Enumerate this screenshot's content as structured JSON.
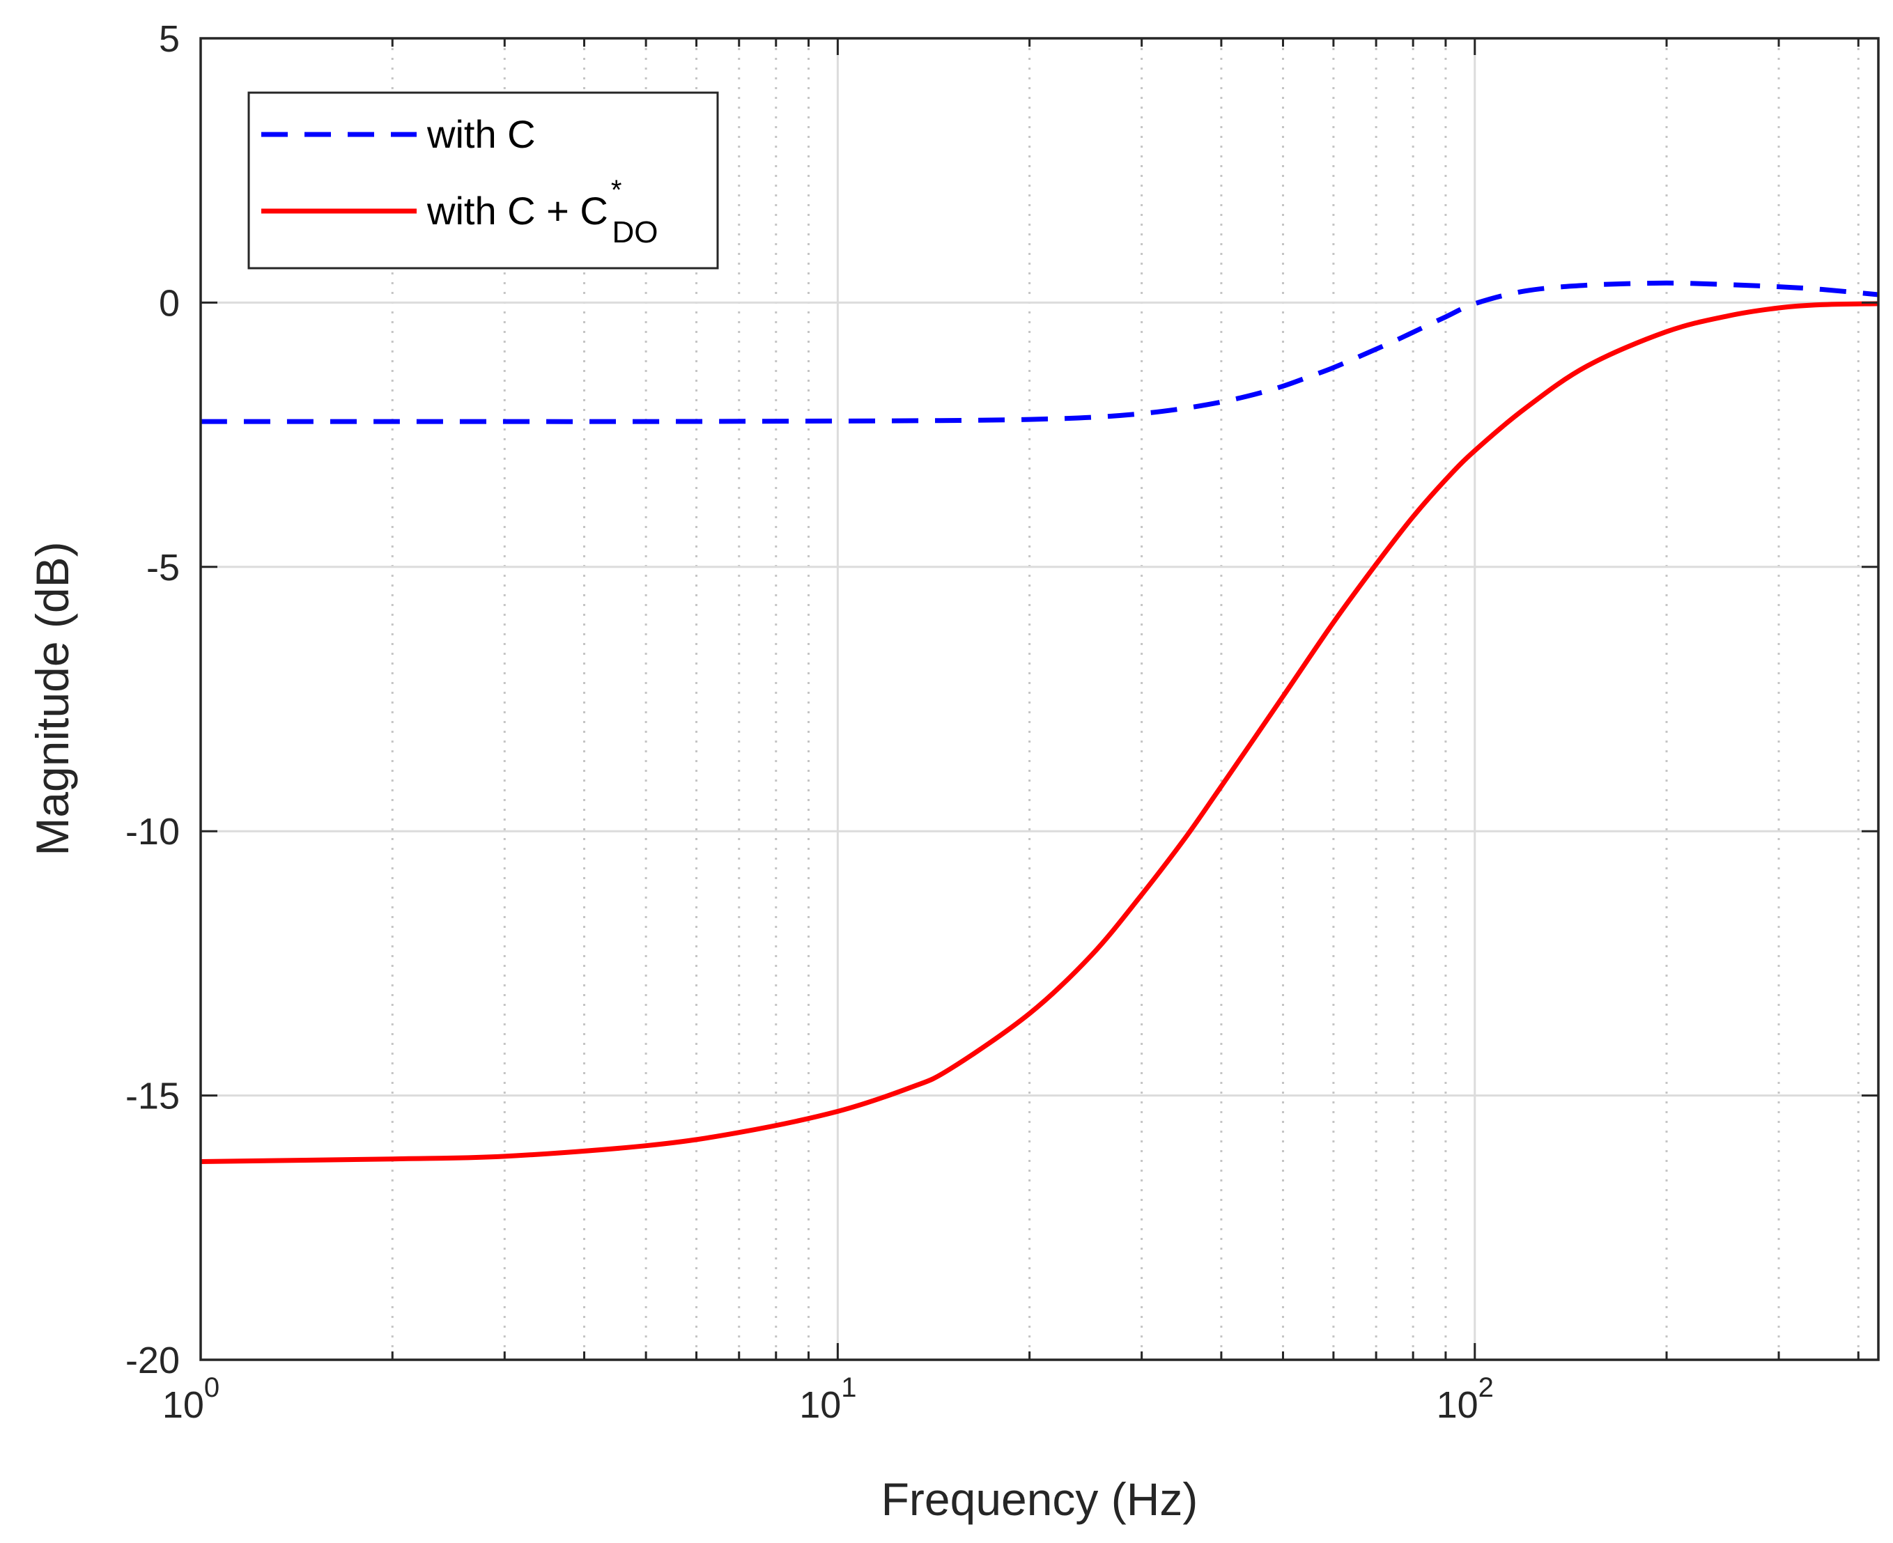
{
  "chart_data": {
    "type": "line",
    "title": "",
    "xlabel": "Frequency (Hz)",
    "ylabel": "Magnitude (dB)",
    "xscale": "log",
    "xlim": [
      1,
      430
    ],
    "ylim": [
      -20,
      5
    ],
    "grid": true,
    "legend_placement": "top-left",
    "x_ticks": [
      {
        "value": 1,
        "base": "10",
        "exp": "0"
      },
      {
        "value": 10,
        "base": "10",
        "exp": "1"
      },
      {
        "value": 100,
        "base": "10",
        "exp": "2"
      }
    ],
    "y_ticks": [
      {
        "value": 5,
        "label": "5"
      },
      {
        "value": 0,
        "label": "0"
      },
      {
        "value": -5,
        "label": "-5"
      },
      {
        "value": -10,
        "label": "-10"
      },
      {
        "value": -15,
        "label": "-15"
      },
      {
        "value": -20,
        "label": "-20"
      }
    ],
    "series": [
      {
        "name": "with C",
        "legend_main": "with C",
        "legend_sup": "",
        "legend_sub": "",
        "color": "#0000ff",
        "style": "dashed",
        "x": [
          1,
          2,
          5,
          10,
          15,
          20,
          25,
          30,
          35,
          40,
          45,
          50,
          55,
          60,
          65,
          70,
          75,
          80,
          90,
          100,
          120,
          150,
          200,
          250,
          300,
          350,
          430
        ],
        "y": [
          -2.25,
          -2.25,
          -2.25,
          -2.24,
          -2.23,
          -2.21,
          -2.17,
          -2.1,
          -2.0,
          -1.88,
          -1.74,
          -1.58,
          -1.4,
          -1.23,
          -1.05,
          -0.88,
          -0.72,
          -0.56,
          -0.27,
          -0.02,
          0.22,
          0.33,
          0.37,
          0.34,
          0.3,
          0.25,
          0.15
        ]
      },
      {
        "name": "with C + C*DO",
        "legend_main": "with C + C",
        "legend_sup": "*",
        "legend_sub": "DO",
        "color": "#ff0000",
        "style": "solid",
        "x": [
          1,
          2,
          3,
          5,
          7,
          10,
          13,
          15,
          20,
          25,
          30,
          35,
          40,
          50,
          60,
          70,
          80,
          90,
          100,
          120,
          150,
          200,
          250,
          300,
          350,
          430
        ],
        "y": [
          -16.25,
          -16.2,
          -16.15,
          -15.95,
          -15.7,
          -15.3,
          -14.85,
          -14.5,
          -13.45,
          -12.35,
          -11.2,
          -10.15,
          -9.15,
          -7.45,
          -6.05,
          -4.95,
          -4.05,
          -3.35,
          -2.8,
          -2.0,
          -1.2,
          -0.55,
          -0.25,
          -0.1,
          -0.04,
          -0.02
        ]
      }
    ]
  }
}
